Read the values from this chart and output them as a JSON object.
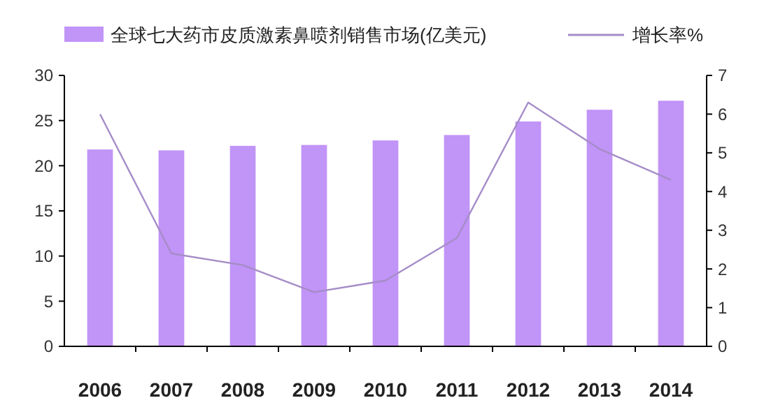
{
  "chart_data": {
    "type": "bar",
    "categories": [
      "2006",
      "2007",
      "2008",
      "2009",
      "2010",
      "2011",
      "2012",
      "2013",
      "2014"
    ],
    "series": [
      {
        "name": "全球七大药市皮质激素鼻喷剂销售市场(亿美元)",
        "color": "#c194f7",
        "values": [
          21.8,
          21.7,
          22.2,
          22.3,
          22.8,
          23.4,
          24.9,
          26.2,
          27.2
        ]
      },
      {
        "name": "增长率%",
        "type": "line",
        "axis": "y2",
        "color": "#a58cc8",
        "values": [
          6.0,
          2.4,
          2.1,
          1.4,
          1.7,
          2.8,
          6.3,
          5.1,
          4.3
        ]
      }
    ],
    "ylim": [
      0,
      30
    ],
    "yticks": [
      0,
      5,
      10,
      15,
      20,
      25,
      30
    ],
    "y2lim": [
      0,
      7
    ],
    "y2ticks": [
      0,
      1,
      2,
      3,
      4,
      5,
      6,
      7
    ],
    "legend": "top",
    "grid": false,
    "marker": "none"
  }
}
